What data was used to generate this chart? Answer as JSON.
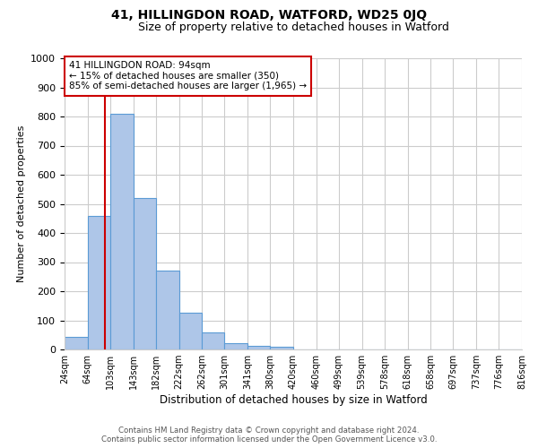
{
  "title": "41, HILLINGDON ROAD, WATFORD, WD25 0JQ",
  "subtitle": "Size of property relative to detached houses in Watford",
  "xlabel": "Distribution of detached houses by size in Watford",
  "ylabel": "Number of detached properties",
  "bar_labels": [
    "24sqm",
    "64sqm",
    "103sqm",
    "143sqm",
    "182sqm",
    "222sqm",
    "262sqm",
    "301sqm",
    "341sqm",
    "380sqm",
    "420sqm",
    "460sqm",
    "499sqm",
    "539sqm",
    "578sqm",
    "618sqm",
    "658sqm",
    "697sqm",
    "737sqm",
    "776sqm",
    "816sqm"
  ],
  "bin_edges": [
    24,
    64,
    103,
    143,
    182,
    222,
    262,
    301,
    341,
    380,
    420,
    460,
    499,
    539,
    578,
    618,
    658,
    697,
    737,
    776,
    816
  ],
  "all_bar_values": [
    43,
    460,
    810,
    520,
    270,
    125,
    57,
    22,
    13,
    8,
    0,
    0,
    0,
    0,
    0,
    0,
    0,
    0,
    0,
    0
  ],
  "bar_color": "#aec6e8",
  "bar_edge_color": "#5b9bd5",
  "vline_x": 94,
  "vline_color": "#cc0000",
  "ylim": [
    0,
    1000
  ],
  "yticks": [
    0,
    100,
    200,
    300,
    400,
    500,
    600,
    700,
    800,
    900,
    1000
  ],
  "annotation_title": "41 HILLINGDON ROAD: 94sqm",
  "annotation_line1": "← 15% of detached houses are smaller (350)",
  "annotation_line2": "85% of semi-detached houses are larger (1,965) →",
  "annotation_box_color": "#ffffff",
  "annotation_box_edge": "#cc0000",
  "footer_line1": "Contains HM Land Registry data © Crown copyright and database right 2024.",
  "footer_line2": "Contains public sector information licensed under the Open Government Licence v3.0.",
  "bg_color": "#ffffff",
  "grid_color": "#cccccc"
}
